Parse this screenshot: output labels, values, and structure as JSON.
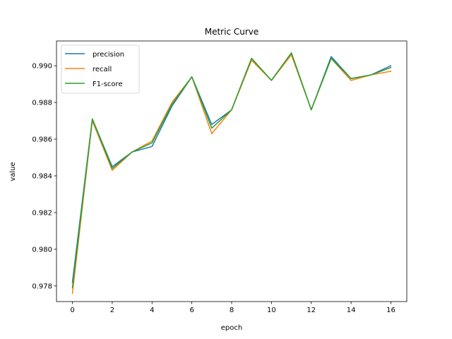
{
  "chart_data": {
    "type": "line",
    "title": "Metric Curve",
    "xlabel": "epoch",
    "ylabel": "value",
    "xlim": [
      -0.8,
      16.8
    ],
    "ylim": [
      0.97715,
      0.99135
    ],
    "xticks": [
      0,
      2,
      4,
      6,
      8,
      10,
      12,
      14,
      16
    ],
    "xtick_labels": [
      "0",
      "2",
      "4",
      "6",
      "8",
      "10",
      "12",
      "14",
      "16"
    ],
    "yticks": [
      0.978,
      0.98,
      0.982,
      0.984,
      0.986,
      0.988,
      0.99
    ],
    "ytick_labels": [
      "0.978",
      "0.980",
      "0.982",
      "0.984",
      "0.986",
      "0.988",
      "0.990"
    ],
    "legend_location": "top-left",
    "grid": false,
    "x": [
      0,
      1,
      2,
      3,
      4,
      5,
      6,
      7,
      8,
      9,
      10,
      11,
      12,
      13,
      14,
      15,
      16
    ],
    "series": [
      {
        "name": "precision",
        "color": "#1f77b4",
        "values": [
          0.9782,
          0.9871,
          0.9845,
          0.9853,
          0.9856,
          0.9878,
          0.9894,
          0.9868,
          0.9876,
          0.9904,
          0.9892,
          0.9907,
          0.9876,
          0.9905,
          0.9893,
          0.9895,
          0.99
        ]
      },
      {
        "name": "recall",
        "color": "#ff7f0e",
        "values": [
          0.9776,
          0.987,
          0.9843,
          0.9853,
          0.9859,
          0.988,
          0.9894,
          0.9863,
          0.9876,
          0.9903,
          0.9892,
          0.9906,
          0.9876,
          0.9904,
          0.9892,
          0.9895,
          0.9897
        ]
      },
      {
        "name": "F1-score",
        "color": "#2ca02c",
        "values": [
          0.9779,
          0.9871,
          0.9844,
          0.9853,
          0.9858,
          0.9879,
          0.9894,
          0.9866,
          0.9876,
          0.9904,
          0.9892,
          0.9907,
          0.9876,
          0.9904,
          0.9893,
          0.9895,
          0.9899
        ]
      }
    ]
  }
}
